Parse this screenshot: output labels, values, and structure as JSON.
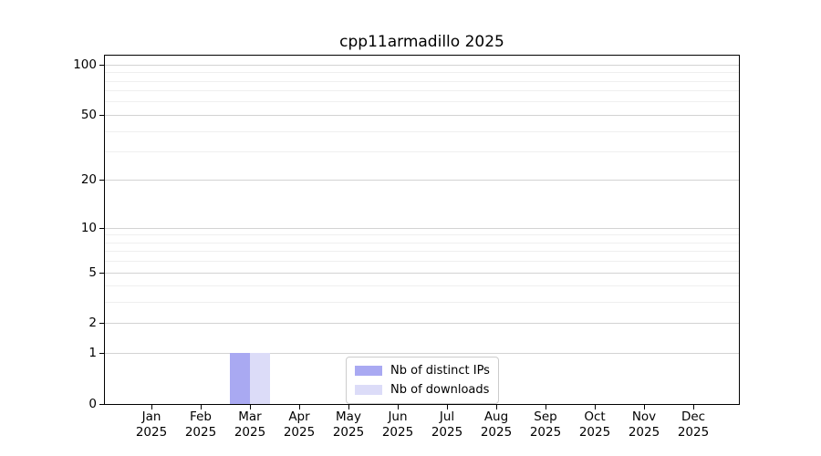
{
  "page": {
    "background": "#ffffff"
  },
  "chart_data": {
    "type": "bar",
    "title": "cpp11armadillo 2025",
    "x": {
      "categories": [
        "Jan",
        "Feb",
        "Mar",
        "Apr",
        "May",
        "Jun",
        "Jul",
        "Aug",
        "Sep",
        "Oct",
        "Nov",
        "Dec"
      ],
      "sub_label": "2025"
    },
    "y": {
      "scale": "log1p",
      "major_ticks": [
        0,
        1,
        2,
        5,
        10,
        20,
        50,
        100
      ],
      "minor_ticks": [
        3,
        4,
        6,
        7,
        8,
        9,
        30,
        40,
        60,
        70,
        80,
        90
      ],
      "max_value": 113,
      "ylabel": "",
      "grid": "horizontal"
    },
    "series": [
      {
        "name": "Nb of distinct IPs",
        "color": "#a9a9f2",
        "values": [
          0,
          0,
          1,
          0,
          0,
          0,
          0,
          0,
          0,
          0,
          0,
          0
        ]
      },
      {
        "name": "Nb of downloads",
        "color": "#dcdcf8",
        "values": [
          0,
          0,
          1,
          0,
          0,
          0,
          0,
          0,
          0,
          0,
          0,
          0
        ]
      }
    ],
    "legend": {
      "position": "lower center-right",
      "framed": true
    },
    "colors": {
      "grid_major": "#d3d3d3",
      "grid_minor": "#efefef",
      "spine": "#000000",
      "text": "#000000"
    }
  }
}
